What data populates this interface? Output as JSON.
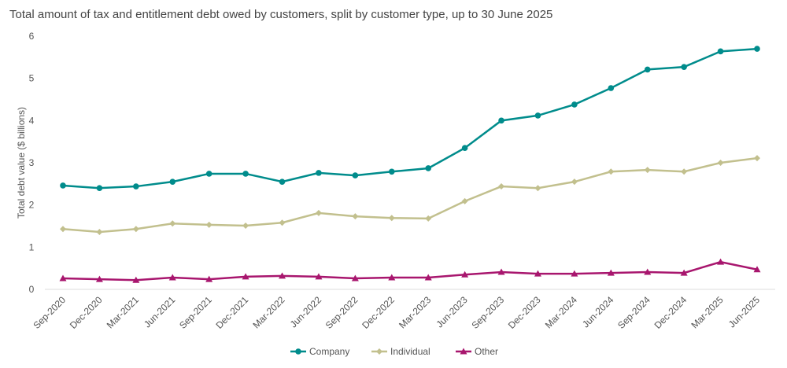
{
  "chart_data": {
    "type": "line",
    "title": "Total amount of tax and entitlement debt owed by customers, split by customer type, up to 30 June 2025",
    "xlabel": "",
    "ylabel": "Total debt value ($ billions)",
    "ylim": [
      0,
      6
    ],
    "yticks": [
      "0",
      "1",
      "2",
      "3",
      "4",
      "5",
      "6"
    ],
    "grid": false,
    "legend": "bottom",
    "categories": [
      "Sep-2020",
      "Dec-2020",
      "Mar-2021",
      "Jun-2021",
      "Sep-2021",
      "Dec-2021",
      "Mar-2022",
      "Jun-2022",
      "Sep-2022",
      "Dec-2022",
      "Mar-2023",
      "Jun-2023",
      "Sep-2023",
      "Dec-2023",
      "Mar-2024",
      "Jun-2024",
      "Sep-2024",
      "Dec-2024",
      "Mar-2025",
      "Jun-2025"
    ],
    "series": [
      {
        "name": "Company",
        "color": "#008C8C",
        "marker": "circle",
        "values": [
          2.46,
          2.4,
          2.44,
          2.55,
          2.74,
          2.74,
          2.55,
          2.76,
          2.7,
          2.79,
          2.87,
          3.35,
          4.0,
          4.12,
          4.38,
          4.77,
          5.21,
          5.27,
          5.64,
          5.7
        ]
      },
      {
        "name": "Individual",
        "color": "#C2C08E",
        "marker": "diamond",
        "values": [
          1.43,
          1.36,
          1.43,
          1.56,
          1.53,
          1.51,
          1.58,
          1.81,
          1.73,
          1.69,
          1.68,
          2.09,
          2.44,
          2.4,
          2.55,
          2.79,
          2.83,
          2.79,
          3.0,
          3.11
        ]
      },
      {
        "name": "Other",
        "color": "#A8166E",
        "marker": "triangle",
        "values": [
          0.26,
          0.24,
          0.22,
          0.28,
          0.24,
          0.3,
          0.32,
          0.3,
          0.26,
          0.28,
          0.28,
          0.35,
          0.41,
          0.37,
          0.37,
          0.39,
          0.41,
          0.39,
          0.65,
          0.47
        ]
      }
    ]
  }
}
